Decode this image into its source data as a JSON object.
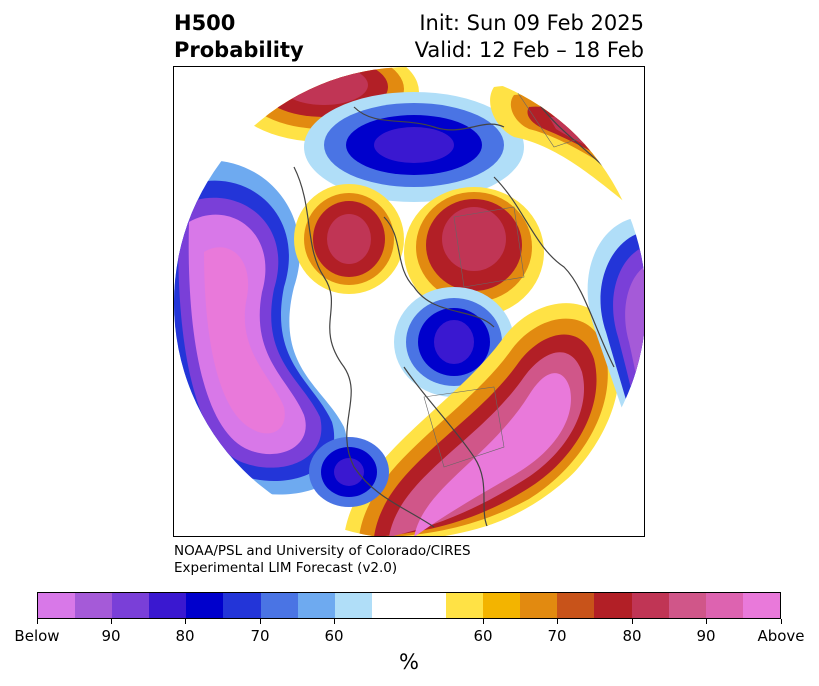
{
  "header": {
    "title_line1": "H500",
    "title_line2": "Probability",
    "init_text": "Init: Sun 09 Feb 2025",
    "valid_text": "Valid: 12 Feb – 18 Feb"
  },
  "credit": {
    "line1": "NOAA/PSL and University of Colorado/CIRES",
    "line2": "Experimental LIM Forecast (v2.0)"
  },
  "colorbar": {
    "colors": [
      "#d878e8",
      "#a55ad8",
      "#7a3fd8",
      "#3a18d0",
      "#0000cc",
      "#2335d8",
      "#4a74e4",
      "#6eaaf0",
      "#b0def8",
      "#ffffff",
      "#ffe245",
      "#f3b400",
      "#e28a10",
      "#c8531a",
      "#b21f26",
      "#c03555",
      "#d05689",
      "#dd63b0",
      "#e979da"
    ],
    "tick_labels": [
      "Below",
      "90",
      "80",
      "70",
      "60",
      "60",
      "70",
      "80",
      "90",
      "Above"
    ],
    "unit_label": "%"
  },
  "map": {
    "regions": [
      {
        "name": "below-anomaly-pacific",
        "category": "below"
      },
      {
        "name": "below-anomaly-arctic",
        "category": "below"
      },
      {
        "name": "below-anomaly-hudson-bay",
        "category": "below"
      },
      {
        "name": "below-anomaly-southeast-us",
        "category": "below"
      },
      {
        "name": "below-anomaly-east-atlantic",
        "category": "below"
      },
      {
        "name": "above-anomaly-north-atlantic",
        "category": "above"
      },
      {
        "name": "above-anomaly-europe",
        "category": "above"
      },
      {
        "name": "above-anomaly-east-asia",
        "category": "above"
      },
      {
        "name": "above-anomaly-siberia",
        "category": "above"
      },
      {
        "name": "above-anomaly-central-russia",
        "category": "above"
      }
    ]
  }
}
